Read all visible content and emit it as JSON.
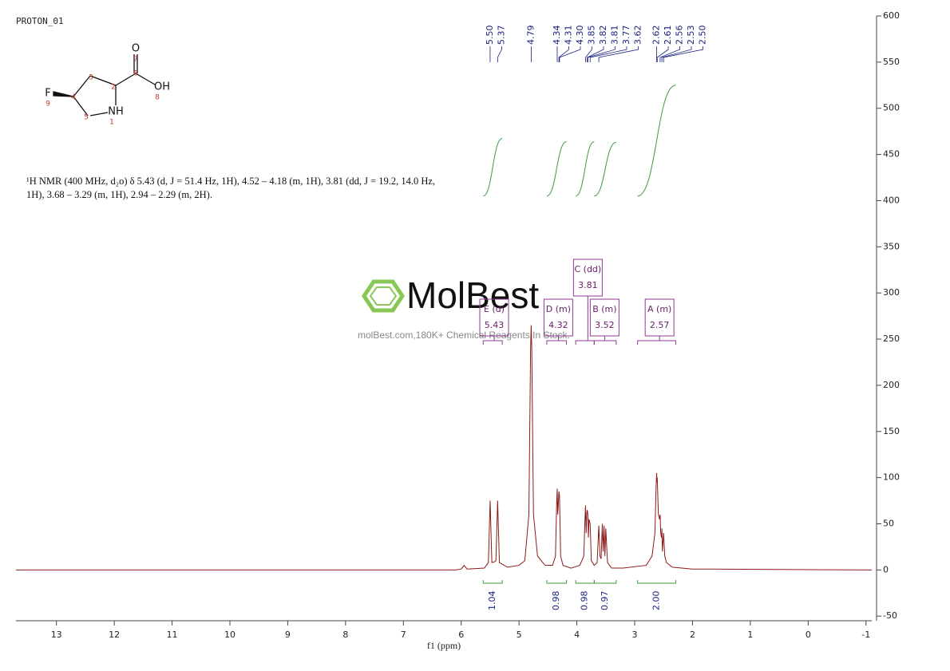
{
  "chart_data": {
    "type": "line",
    "title": "PROTON_01",
    "description": [
      "¹H NMR (400 MHz, d₂o) δ 5.43 (d, J = 51.4 Hz, 1H), 4.52 – 4.18 (m, 1H), 3.81 (dd, J = 19.2, 14.0 Hz,",
      "1H), 3.68 – 3.29 (m, 1H), 2.94 – 2.29 (m, 2H)."
    ],
    "xlabel": "f1 (ppm)",
    "watermark": {
      "logo": "MolBest",
      "tagline": "molBest.com,180K+ Chemical Reagents In Stock."
    },
    "x": [
      13.7,
      6.1,
      6.0,
      5.95,
      5.9,
      5.6,
      5.53,
      5.5,
      5.47,
      5.42,
      5.4,
      5.37,
      5.34,
      5.2,
      5.0,
      4.9,
      4.83,
      4.8,
      4.79,
      4.78,
      4.75,
      4.68,
      4.55,
      4.42,
      4.37,
      4.35,
      4.34,
      4.33,
      4.31,
      4.3,
      4.28,
      4.24,
      4.1,
      3.95,
      3.88,
      3.86,
      3.85,
      3.84,
      3.83,
      3.82,
      3.81,
      3.8,
      3.79,
      3.77,
      3.75,
      3.7,
      3.65,
      3.62,
      3.6,
      3.58,
      3.56,
      3.545,
      3.53,
      3.515,
      3.5,
      3.47,
      3.4,
      3.2,
      2.8,
      2.7,
      2.65,
      2.63,
      2.62,
      2.615,
      2.61,
      2.59,
      2.57,
      2.56,
      2.55,
      2.535,
      2.53,
      2.52,
      2.5,
      2.48,
      2.45,
      2.35,
      2.0,
      -1.1
    ],
    "series": [
      {
        "color": "#8b1a1a",
        "values": [
          0,
          0,
          1,
          5,
          1,
          2,
          8,
          75,
          8,
          9,
          10,
          75,
          8,
          3,
          5,
          10,
          60,
          240,
          265,
          240,
          60,
          15,
          5,
          5,
          15,
          70,
          88,
          60,
          85,
          80,
          15,
          5,
          2,
          5,
          15,
          55,
          70,
          40,
          60,
          65,
          60,
          35,
          55,
          50,
          10,
          5,
          8,
          48,
          15,
          12,
          50,
          20,
          48,
          15,
          45,
          8,
          2,
          2,
          5,
          15,
          40,
          90,
          105,
          95,
          100,
          60,
          55,
          60,
          40,
          35,
          45,
          20,
          40,
          15,
          8,
          3,
          1,
          0
        ]
      }
    ],
    "xlim": [
      13.7,
      -1.1
    ],
    "xticks": [
      13,
      12,
      11,
      10,
      9,
      8,
      7,
      6,
      5,
      4,
      3,
      2,
      1,
      0,
      -1
    ],
    "ylim": [
      -55,
      600
    ],
    "yticks": [
      -50,
      0,
      50,
      100,
      150,
      200,
      250,
      300,
      350,
      400,
      450,
      500,
      550,
      600
    ],
    "peak_labels": [
      {
        "value": 5.5,
        "label": "5.50"
      },
      {
        "value": 5.37,
        "label": "5.37"
      },
      {
        "value": 4.79,
        "label": "4.79"
      },
      {
        "value": 4.34,
        "label": "4.34"
      },
      {
        "value": 4.31,
        "label": "4.31"
      },
      {
        "value": 4.3,
        "label": "4.30"
      },
      {
        "value": 3.85,
        "label": "3.85"
      },
      {
        "value": 3.82,
        "label": "3.82"
      },
      {
        "value": 3.81,
        "label": "3.81"
      },
      {
        "value": 3.77,
        "label": "3.77"
      },
      {
        "value": 3.62,
        "label": "3.62"
      },
      {
        "value": 2.62,
        "label": "2.62"
      },
      {
        "value": 2.61,
        "label": "2.61"
      },
      {
        "value": 2.56,
        "label": "2.56"
      },
      {
        "value": 2.53,
        "label": "2.53"
      },
      {
        "value": 2.5,
        "label": "2.50"
      }
    ],
    "multiplets": [
      {
        "label": "E (d)",
        "shift": 5.43,
        "range": [
          5.62,
          5.29
        ]
      },
      {
        "label": "D (m)",
        "shift": 4.32,
        "range": [
          4.52,
          4.18
        ]
      },
      {
        "label": "C (dd)",
        "shift": 3.81,
        "range": [
          4.02,
          3.7
        ]
      },
      {
        "label": "B (m)",
        "shift": 3.52,
        "range": [
          3.7,
          3.32
        ]
      },
      {
        "label": "A (m)",
        "shift": 2.57,
        "range": [
          2.95,
          2.29
        ]
      }
    ],
    "integrals": [
      {
        "value": 1.04,
        "range": [
          5.62,
          5.29
        ]
      },
      {
        "value": 0.98,
        "range": [
          4.52,
          4.18
        ]
      },
      {
        "value": 0.98,
        "range": [
          4.02,
          3.7
        ]
      },
      {
        "value": 0.97,
        "range": [
          3.7,
          3.32
        ]
      },
      {
        "value": 2,
        "label": "2.00",
        "range": [
          2.95,
          2.29
        ]
      }
    ]
  },
  "structure": {
    "atoms": [
      "O",
      "OH",
      "F",
      "NH"
    ],
    "numbers": [
      "1",
      "2",
      "3",
      "4",
      "5",
      "6",
      "7",
      "8",
      "9"
    ]
  }
}
